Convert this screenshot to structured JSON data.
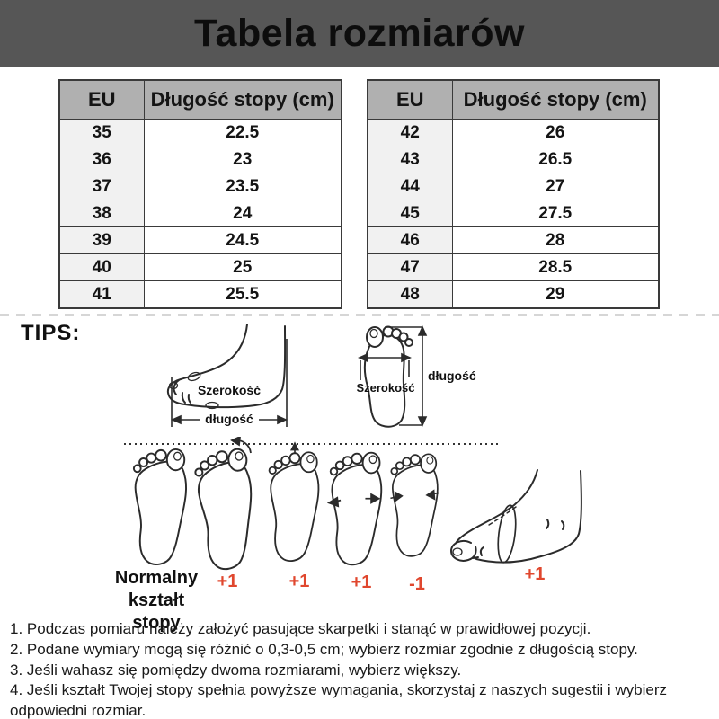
{
  "header": {
    "title": "Tabela rozmiarów"
  },
  "chart_data": [
    {
      "type": "table",
      "name": "eu-sizes-35-41",
      "columns": [
        "EU",
        "Długość stopy (cm)"
      ],
      "rows": [
        [
          "35",
          "22.5"
        ],
        [
          "36",
          "23"
        ],
        [
          "37",
          "23.5"
        ],
        [
          "38",
          "24"
        ],
        [
          "39",
          "24.5"
        ],
        [
          "40",
          "25"
        ],
        [
          "41",
          "25.5"
        ]
      ]
    },
    {
      "type": "table",
      "name": "eu-sizes-42-48",
      "columns": [
        "EU",
        "Długość stopy (cm)"
      ],
      "rows": [
        [
          "42",
          "26"
        ],
        [
          "43",
          "26.5"
        ],
        [
          "44",
          "27"
        ],
        [
          "45",
          "27.5"
        ],
        [
          "46",
          "28"
        ],
        [
          "47",
          "28.5"
        ],
        [
          "48",
          "29"
        ]
      ]
    }
  ],
  "tips": {
    "label": "TIPS:",
    "side_view_diagram": {
      "width_label": "Szerokość",
      "length_label": "długość"
    },
    "top_view_diagram": {
      "width_label": "Szerokość",
      "length_label": "długość"
    },
    "foot_shapes": {
      "normal_label_line1": "Normalny",
      "normal_label_line2": "kształt stopy",
      "adjustments": [
        "+1",
        "+1",
        "+1",
        "-1",
        "+1"
      ]
    }
  },
  "notes": [
    "1. Podczas pomiaru należy założyć pasujące skarpetki i stanąć w prawidłowej pozycji.",
    "2. Podane wymiary mogą się różnić o 0,3-0,5 cm; wybierz rozmiar zgodnie z długością stopy.",
    "3. Jeśli wahasz się pomiędzy dwoma rozmiarami, wybierz większy.",
    "4. Jeśli kształt Twojej stopy spełnia powyższe wymagania, skorzystaj z naszych sugestii i wybierz odpowiedni rozmiar."
  ],
  "colors": {
    "header_bar": "#565656",
    "table_header_bg": "#b0b0b0",
    "eu_column_bg": "#f1f1f1",
    "table_border": "#3a3a3a",
    "accent_red": "#e0472e",
    "dashed_separator": "#d6d6d6"
  }
}
